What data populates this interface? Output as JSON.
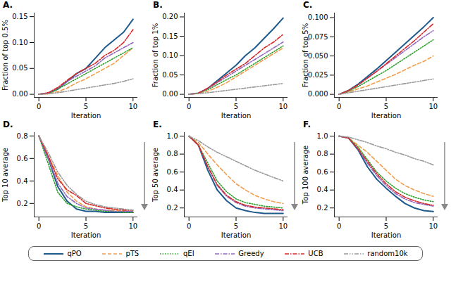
{
  "chart_data": [
    {
      "type": "line",
      "title": "A.",
      "xlabel": "Iteration",
      "ylabel": "Fraction of top 0.5%",
      "x": [
        0,
        1,
        2,
        3,
        4,
        5,
        6,
        7,
        8,
        9,
        10
      ],
      "xlim": [
        -0.5,
        10.5
      ],
      "xticks": [
        0,
        5,
        10
      ],
      "ylim": [
        -0.006,
        0.157
      ],
      "yticks": [
        {
          "value": 0,
          "label": "0.00"
        },
        {
          "value": 0.05,
          "label": "0.05"
        },
        {
          "value": 0.1,
          "label": "0.10"
        },
        {
          "value": 0.15,
          "label": "0.15"
        }
      ],
      "series": [
        {
          "name": "qPO",
          "color": "#1f5a8c",
          "line_style": "solid",
          "values": [
            0,
            0.002,
            0.01,
            0.025,
            0.04,
            0.05,
            0.07,
            0.09,
            0.105,
            0.12,
            0.145
          ]
        },
        {
          "name": "pTS",
          "color": "#f39c4a",
          "line_style": "dashed",
          "values": [
            0,
            0.001,
            0.005,
            0.012,
            0.022,
            0.03,
            0.04,
            0.05,
            0.06,
            0.075,
            0.09
          ]
        },
        {
          "name": "qEI",
          "color": "#2ca02c",
          "line_style": "dotted",
          "values": [
            0,
            0.002,
            0.01,
            0.02,
            0.03,
            0.04,
            0.05,
            0.06,
            0.07,
            0.08,
            0.09
          ]
        },
        {
          "name": "Greedy",
          "color": "#9467bd",
          "line_style": "dashdot",
          "values": [
            0,
            0.003,
            0.012,
            0.025,
            0.035,
            0.045,
            0.055,
            0.07,
            0.08,
            0.09,
            0.1
          ]
        },
        {
          "name": "UCB",
          "color": "#d62728",
          "line_style": "dashdot",
          "values": [
            0,
            0.003,
            0.013,
            0.027,
            0.04,
            0.05,
            0.06,
            0.075,
            0.085,
            0.1,
            0.125
          ]
        },
        {
          "name": "random10k",
          "color": "#9a9a9a",
          "line_style": "dashdotdot",
          "values": [
            0,
            0.001,
            0.003,
            0.006,
            0.009,
            0.012,
            0.015,
            0.018,
            0.021,
            0.025,
            0.03
          ]
        }
      ]
    },
    {
      "type": "line",
      "title": "B.",
      "xlabel": "Iteration",
      "ylabel": "Fraction of top 1%",
      "x": [
        0,
        1,
        2,
        3,
        4,
        5,
        6,
        7,
        8,
        9,
        10
      ],
      "xlim": [
        -0.5,
        10.5
      ],
      "xticks": [
        0,
        5,
        10
      ],
      "ylim": [
        -0.008,
        0.21
      ],
      "yticks": [
        {
          "value": 0,
          "label": "0.00"
        },
        {
          "value": 0.05,
          "label": "0.05"
        },
        {
          "value": 0.1,
          "label": "0.10"
        },
        {
          "value": 0.15,
          "label": "0.15"
        },
        {
          "value": 0.2,
          "label": "0.20"
        }
      ],
      "series": [
        {
          "name": "qPO",
          "color": "#1f5a8c",
          "line_style": "solid",
          "values": [
            0,
            0.003,
            0.015,
            0.035,
            0.055,
            0.075,
            0.1,
            0.12,
            0.145,
            0.17,
            0.197
          ]
        },
        {
          "name": "pTS",
          "color": "#f39c4a",
          "line_style": "dashed",
          "values": [
            0,
            0.002,
            0.008,
            0.018,
            0.03,
            0.045,
            0.06,
            0.075,
            0.09,
            0.105,
            0.12
          ]
        },
        {
          "name": "qEI",
          "color": "#2ca02c",
          "line_style": "dotted",
          "values": [
            0,
            0.003,
            0.012,
            0.025,
            0.038,
            0.05,
            0.065,
            0.08,
            0.095,
            0.11,
            0.125
          ]
        },
        {
          "name": "Greedy",
          "color": "#9467bd",
          "line_style": "dashdot",
          "values": [
            0,
            0.003,
            0.015,
            0.03,
            0.045,
            0.06,
            0.075,
            0.09,
            0.105,
            0.12,
            0.135
          ]
        },
        {
          "name": "UCB",
          "color": "#d62728",
          "line_style": "dashdot",
          "values": [
            0,
            0.003,
            0.016,
            0.032,
            0.05,
            0.065,
            0.08,
            0.1,
            0.12,
            0.135,
            0.155
          ]
        },
        {
          "name": "random10k",
          "color": "#9a9a9a",
          "line_style": "dashdotdot",
          "values": [
            0,
            0.002,
            0.004,
            0.007,
            0.01,
            0.013,
            0.016,
            0.019,
            0.022,
            0.025,
            0.028
          ]
        }
      ]
    },
    {
      "type": "line",
      "title": "C.",
      "xlabel": "Iteration",
      "ylabel": "Fraction of top 5%",
      "x": [
        0,
        1,
        2,
        3,
        4,
        5,
        6,
        7,
        8,
        9,
        10
      ],
      "xlim": [
        -0.5,
        10.5
      ],
      "xticks": [
        0,
        5,
        10
      ],
      "ylim": [
        -0.004,
        0.106
      ],
      "yticks": [
        {
          "value": 0,
          "label": "0.000"
        },
        {
          "value": 0.025,
          "label": "0.025"
        },
        {
          "value": 0.05,
          "label": "0.050"
        },
        {
          "value": 0.075,
          "label": "0.075"
        },
        {
          "value": 0.1,
          "label": "0.100"
        }
      ],
      "series": [
        {
          "name": "qPO",
          "color": "#1f5a8c",
          "line_style": "solid",
          "values": [
            0,
            0.005,
            0.013,
            0.023,
            0.033,
            0.044,
            0.055,
            0.066,
            0.077,
            0.088,
            0.1
          ]
        },
        {
          "name": "pTS",
          "color": "#f39c4a",
          "line_style": "dashed",
          "values": [
            0,
            0.003,
            0.007,
            0.011,
            0.016,
            0.021,
            0.026,
            0.032,
            0.038,
            0.043,
            0.05
          ]
        },
        {
          "name": "qEI",
          "color": "#2ca02c",
          "line_style": "dotted",
          "values": [
            0,
            0.004,
            0.01,
            0.017,
            0.024,
            0.031,
            0.039,
            0.047,
            0.055,
            0.063,
            0.071
          ]
        },
        {
          "name": "Greedy",
          "color": "#9467bd",
          "line_style": "dashdot",
          "values": [
            0,
            0.005,
            0.012,
            0.021,
            0.03,
            0.039,
            0.048,
            0.057,
            0.066,
            0.075,
            0.083
          ]
        },
        {
          "name": "UCB",
          "color": "#d62728",
          "line_style": "dashdot",
          "values": [
            0,
            0.005,
            0.012,
            0.021,
            0.03,
            0.04,
            0.05,
            0.06,
            0.07,
            0.081,
            0.092
          ]
        },
        {
          "name": "random10k",
          "color": "#9a9a9a",
          "line_style": "dashdotdot",
          "values": [
            0,
            0.002,
            0.004,
            0.006,
            0.008,
            0.01,
            0.012,
            0.014,
            0.016,
            0.018,
            0.02
          ]
        }
      ]
    },
    {
      "type": "line",
      "title": "D.",
      "xlabel": "Iteration",
      "ylabel": "Top 10 average",
      "x": [
        0,
        1,
        2,
        3,
        4,
        5,
        6,
        7,
        8,
        9,
        10
      ],
      "xlim": [
        -0.5,
        10.5
      ],
      "xticks": [
        0,
        5,
        10
      ],
      "ylim": [
        0.08,
        0.83
      ],
      "yticks": [
        0.2,
        0.4,
        0.6,
        0.8
      ],
      "series": [
        {
          "name": "qPO",
          "color": "#1f5a8c",
          "line_style": "solid",
          "values": [
            0.8,
            0.6,
            0.35,
            0.22,
            0.15,
            0.13,
            0.13,
            0.12,
            0.12,
            0.12,
            0.12
          ]
        },
        {
          "name": "pTS",
          "color": "#f39c4a",
          "line_style": "dashed",
          "values": [
            0.8,
            0.62,
            0.45,
            0.3,
            0.22,
            0.17,
            0.15,
            0.14,
            0.14,
            0.13,
            0.13
          ]
        },
        {
          "name": "qEI",
          "color": "#2ca02c",
          "line_style": "dotted",
          "values": [
            0.8,
            0.55,
            0.3,
            0.2,
            0.17,
            0.15,
            0.14,
            0.13,
            0.13,
            0.12,
            0.12
          ]
        },
        {
          "name": "Greedy",
          "color": "#9467bd",
          "line_style": "dashdot",
          "values": [
            0.8,
            0.6,
            0.38,
            0.26,
            0.2,
            0.16,
            0.15,
            0.14,
            0.13,
            0.13,
            0.13
          ]
        },
        {
          "name": "UCB",
          "color": "#d62728",
          "line_style": "dashdot",
          "values": [
            0.8,
            0.62,
            0.42,
            0.32,
            0.27,
            0.2,
            0.18,
            0.16,
            0.15,
            0.14,
            0.14
          ]
        },
        {
          "name": "random10k",
          "color": "#9a9a9a",
          "line_style": "dashdotdot",
          "values": [
            0.8,
            0.65,
            0.48,
            0.36,
            0.28,
            0.22,
            0.19,
            0.17,
            0.16,
            0.15,
            0.14
          ]
        }
      ]
    },
    {
      "type": "line",
      "title": "E.",
      "xlabel": "Iteration",
      "ylabel": "Top 50 average",
      "x": [
        0,
        1,
        2,
        3,
        4,
        5,
        6,
        7,
        8,
        9,
        10
      ],
      "xlim": [
        -0.5,
        10.5
      ],
      "xticks": [
        0,
        5,
        10
      ],
      "ylim": [
        0.1,
        1.04
      ],
      "yticks": [
        0.2,
        0.4,
        0.6,
        0.8,
        {
          "value": 1,
          "label": "1.0"
        }
      ],
      "series": [
        {
          "name": "qPO",
          "color": "#1f5a8c",
          "line_style": "solid",
          "values": [
            1,
            0.9,
            0.62,
            0.4,
            0.28,
            0.2,
            0.17,
            0.15,
            0.14,
            0.14,
            0.14
          ]
        },
        {
          "name": "pTS",
          "color": "#f39c4a",
          "line_style": "dashed",
          "values": [
            1,
            0.93,
            0.8,
            0.68,
            0.57,
            0.47,
            0.4,
            0.34,
            0.3,
            0.27,
            0.25
          ]
        },
        {
          "name": "qEI",
          "color": "#2ca02c",
          "line_style": "dotted",
          "values": [
            1,
            0.9,
            0.7,
            0.5,
            0.38,
            0.3,
            0.26,
            0.24,
            0.22,
            0.21,
            0.2
          ]
        },
        {
          "name": "Greedy",
          "color": "#9467bd",
          "line_style": "dashdot",
          "values": [
            1,
            0.9,
            0.66,
            0.45,
            0.33,
            0.26,
            0.22,
            0.2,
            0.19,
            0.18,
            0.17
          ]
        },
        {
          "name": "UCB",
          "color": "#d62728",
          "line_style": "dashdot",
          "values": [
            1,
            0.9,
            0.66,
            0.46,
            0.34,
            0.27,
            0.23,
            0.21,
            0.2,
            0.19,
            0.18
          ]
        },
        {
          "name": "random10k",
          "color": "#9a9a9a",
          "line_style": "dashdotdot",
          "values": [
            1,
            0.95,
            0.88,
            0.82,
            0.77,
            0.72,
            0.67,
            0.62,
            0.58,
            0.54,
            0.5
          ]
        }
      ]
    },
    {
      "type": "line",
      "title": "F.",
      "xlabel": "Iteration",
      "ylabel": "Top 100 average",
      "x": [
        0,
        1,
        2,
        3,
        4,
        5,
        6,
        7,
        8,
        9,
        10
      ],
      "xlim": [
        -0.5,
        10.5
      ],
      "xticks": [
        0,
        5,
        10
      ],
      "ylim": [
        0.1,
        1.04
      ],
      "yticks": [
        0.2,
        0.4,
        0.6,
        0.8,
        {
          "value": 1,
          "label": "1.0"
        }
      ],
      "legend": "bottom",
      "series": [
        {
          "name": "qPO",
          "color": "#1f5a8c",
          "line_style": "solid",
          "values": [
            1,
            0.98,
            0.85,
            0.66,
            0.52,
            0.42,
            0.33,
            0.25,
            0.2,
            0.17,
            0.16
          ]
        },
        {
          "name": "pTS",
          "color": "#f39c4a",
          "line_style": "dashed",
          "values": [
            1,
            0.98,
            0.9,
            0.82,
            0.72,
            0.62,
            0.52,
            0.45,
            0.4,
            0.36,
            0.33
          ]
        },
        {
          "name": "qEI",
          "color": "#2ca02c",
          "line_style": "dotted",
          "values": [
            1,
            0.98,
            0.88,
            0.74,
            0.6,
            0.5,
            0.42,
            0.36,
            0.32,
            0.29,
            0.27
          ]
        },
        {
          "name": "Greedy",
          "color": "#9467bd",
          "line_style": "dashdot",
          "values": [
            1,
            0.98,
            0.86,
            0.7,
            0.56,
            0.45,
            0.36,
            0.3,
            0.26,
            0.24,
            0.22
          ]
        },
        {
          "name": "UCB",
          "color": "#d62728",
          "line_style": "dashdot",
          "values": [
            1,
            0.98,
            0.86,
            0.72,
            0.58,
            0.47,
            0.38,
            0.32,
            0.28,
            0.25,
            0.23
          ]
        },
        {
          "name": "random10k",
          "color": "#9a9a9a",
          "line_style": "dashdotdot",
          "values": [
            1,
            0.99,
            0.96,
            0.93,
            0.89,
            0.86,
            0.82,
            0.79,
            0.75,
            0.72,
            0.68
          ]
        }
      ]
    }
  ]
}
